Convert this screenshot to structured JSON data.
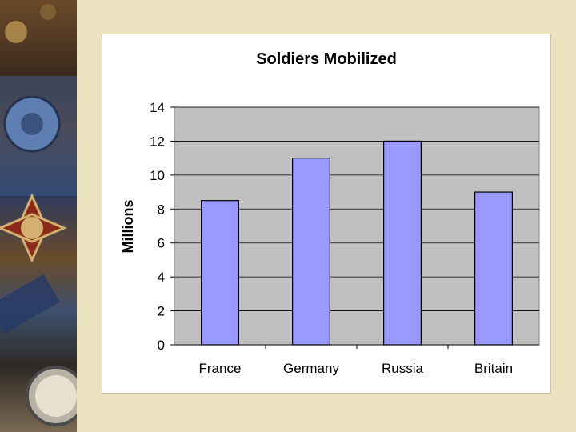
{
  "colors": {
    "background": "#ebe3bf",
    "plot_area": "#c0c0c0",
    "bar_fill": "#9999ff",
    "bar_stroke": "#000000",
    "gridline": "#000000"
  },
  "chart_data": {
    "type": "bar",
    "title": "Soldiers Mobilized",
    "xlabel": "",
    "ylabel": "Millions",
    "categories": [
      "France",
      "Germany",
      "Russia",
      "Britain"
    ],
    "values": [
      8.5,
      11,
      12,
      9
    ],
    "ylim": [
      0,
      14
    ],
    "yticks": [
      0,
      2,
      4,
      6,
      8,
      10,
      12,
      14
    ],
    "grid": true,
    "legend": "none"
  }
}
